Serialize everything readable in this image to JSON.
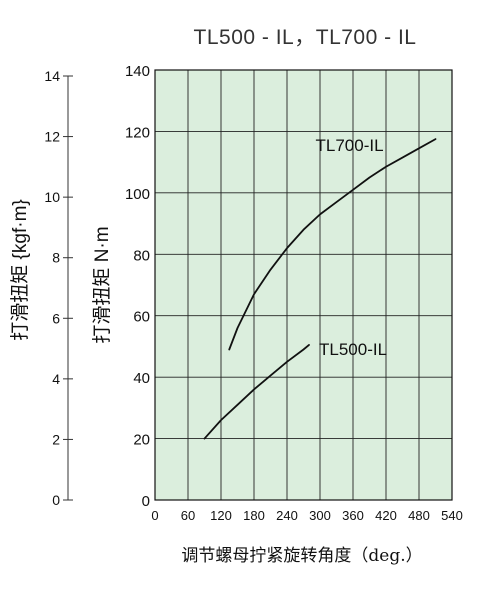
{
  "chart_data": {
    "type": "line",
    "title": "TL500 - IL，TL700 - IL",
    "xlabel": "调节螺母拧紧旋转角度（deg.）",
    "ylabel": "打滑扭矩 N·m",
    "ylabel_secondary": "打滑扭矩 {kgf·m}",
    "xlim": [
      0,
      540
    ],
    "ylim": [
      0,
      140
    ],
    "ylim_secondary": [
      0,
      14
    ],
    "grid": true,
    "x_ticks": [
      "0",
      "60",
      "120",
      "180",
      "240",
      "300",
      "360",
      "420",
      "480",
      "540"
    ],
    "y_ticks": [
      "0",
      "20",
      "40",
      "60",
      "80",
      "100",
      "120",
      "140"
    ],
    "y_ticks_secondary": [
      "0",
      "2",
      "4",
      "6",
      "8",
      "10",
      "12",
      "14"
    ],
    "series": [
      {
        "name": "TL700-IL",
        "x": [
          135,
          150,
          180,
          210,
          240,
          270,
          300,
          330,
          360,
          390,
          420,
          450,
          480,
          510
        ],
        "y": [
          49,
          56,
          67,
          75,
          82,
          88,
          93,
          97,
          101,
          105,
          108.5,
          111.5,
          114.5,
          117.5
        ]
      },
      {
        "name": "TL500-IL",
        "x": [
          90,
          120,
          150,
          180,
          210,
          240,
          270,
          280
        ],
        "y": [
          20,
          26,
          31,
          36,
          40.5,
          45,
          49,
          50.5
        ]
      }
    ]
  }
}
